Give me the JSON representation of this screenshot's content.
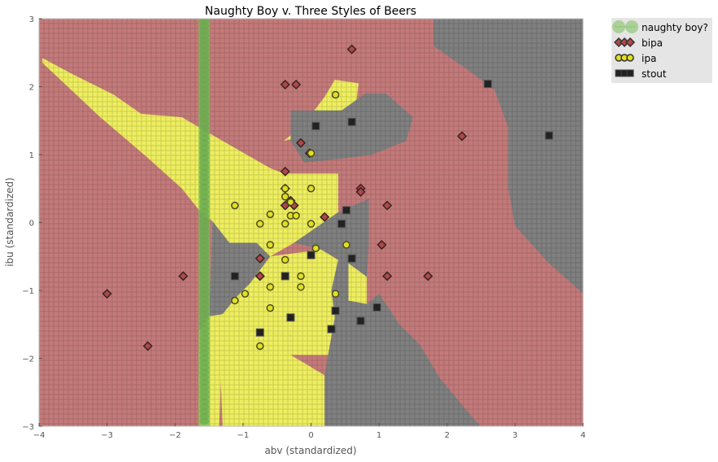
{
  "chart_data": {
    "type": "scatter",
    "title": "Naughty Boy v. Three Styles of Beers",
    "xlabel": "abv (standardized)",
    "ylabel": "ibu (standardized)",
    "xlim": [
      -4,
      4
    ],
    "ylim": [
      -3,
      3
    ],
    "xticks": [
      "−4",
      "−3",
      "−2",
      "−1",
      "0",
      "1",
      "2",
      "3",
      "4"
    ],
    "yticks": [
      "−3",
      "−2",
      "−1",
      "0",
      "1",
      "2",
      "3"
    ],
    "grid": true,
    "legend_position": "outside-top-right",
    "region_colors": {
      "bipa": "#c47a7a",
      "ipa": "#eeee60",
      "stout": "#808080"
    },
    "naughty_boy": {
      "name": "naughty boy?",
      "x": -1.57,
      "color": "#7cbf5a"
    },
    "series": [
      {
        "name": "bipa",
        "marker": "diamond",
        "color": "#b04848",
        "points": [
          [
            0.6,
            2.55
          ],
          [
            -0.38,
            2.03
          ],
          [
            -0.22,
            2.03
          ],
          [
            2.22,
            1.27
          ],
          [
            -0.15,
            1.17
          ],
          [
            -0.02,
            1.02
          ],
          [
            -0.38,
            0.75
          ],
          [
            0.73,
            0.5
          ],
          [
            0.73,
            0.45
          ],
          [
            -0.38,
            0.5
          ],
          [
            -0.3,
            0.32
          ],
          [
            -0.25,
            0.25
          ],
          [
            -0.38,
            0.25
          ],
          [
            1.12,
            0.25
          ],
          [
            0.2,
            0.08
          ],
          [
            1.04,
            -0.33
          ],
          [
            -0.75,
            -0.53
          ],
          [
            -1.88,
            -0.79
          ],
          [
            -0.75,
            -0.79
          ],
          [
            1.12,
            -0.79
          ],
          [
            1.72,
            -0.79
          ],
          [
            -3.0,
            -1.05
          ],
          [
            -2.4,
            -1.82
          ]
        ]
      },
      {
        "name": "ipa",
        "marker": "circle",
        "color": "#e0e020",
        "points": [
          [
            0.36,
            1.88
          ],
          [
            0.0,
            1.02
          ],
          [
            -0.38,
            0.5
          ],
          [
            0.0,
            0.5
          ],
          [
            -0.38,
            0.38
          ],
          [
            -0.3,
            0.3
          ],
          [
            -1.12,
            0.25
          ],
          [
            -0.6,
            0.12
          ],
          [
            -0.3,
            0.1
          ],
          [
            -0.22,
            0.1
          ],
          [
            -0.75,
            -0.02
          ],
          [
            -0.38,
            -0.02
          ],
          [
            0.0,
            -0.02
          ],
          [
            0.52,
            -0.33
          ],
          [
            -0.6,
            -0.33
          ],
          [
            0.07,
            -0.38
          ],
          [
            -0.38,
            -0.55
          ],
          [
            -0.15,
            -0.79
          ],
          [
            -0.6,
            -0.95
          ],
          [
            -0.15,
            -0.95
          ],
          [
            -0.97,
            -1.05
          ],
          [
            0.36,
            -1.05
          ],
          [
            -1.12,
            -1.15
          ],
          [
            -0.6,
            -1.26
          ],
          [
            -0.75,
            -1.82
          ]
        ]
      },
      {
        "name": "stout",
        "marker": "square",
        "color": "#222222",
        "points": [
          [
            2.6,
            2.04
          ],
          [
            0.6,
            1.48
          ],
          [
            0.07,
            1.42
          ],
          [
            3.5,
            1.28
          ],
          [
            0.52,
            0.18
          ],
          [
            0.45,
            -0.02
          ],
          [
            0.0,
            -0.48
          ],
          [
            0.6,
            -0.53
          ],
          [
            -1.12,
            -0.79
          ],
          [
            -0.38,
            -0.79
          ],
          [
            0.97,
            -1.25
          ],
          [
            0.36,
            -1.3
          ],
          [
            -0.3,
            -1.4
          ],
          [
            0.73,
            -1.45
          ],
          [
            0.3,
            -1.57
          ],
          [
            -0.75,
            -1.62
          ]
        ]
      }
    ]
  }
}
